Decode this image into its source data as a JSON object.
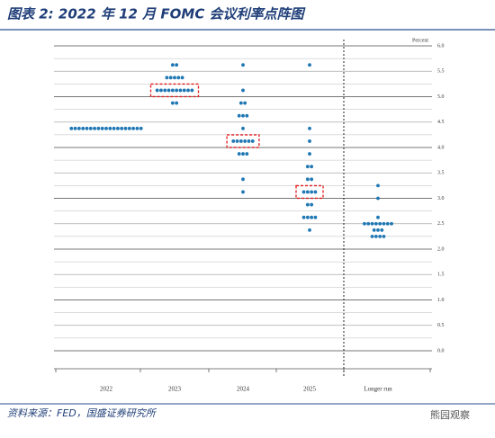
{
  "chart_data": {
    "type": "dot",
    "title": "图表 2:  2022 年 12 月 FOMC 会议利率点阵图",
    "y_label": "Percent",
    "categories": [
      "2022",
      "2023",
      "2024",
      "2025",
      "Longer run"
    ],
    "dots": [
      [
        {
          "value": 4.375,
          "count": 19
        }
      ],
      [
        {
          "value": 5.625,
          "count": 2
        },
        {
          "value": 5.375,
          "count": 5
        },
        {
          "value": 5.125,
          "count": 10
        },
        {
          "value": 4.875,
          "count": 2
        }
      ],
      [
        {
          "value": 5.625,
          "count": 1
        },
        {
          "value": 5.125,
          "count": 1
        },
        {
          "value": 4.875,
          "count": 2
        },
        {
          "value": 4.625,
          "count": 3
        },
        {
          "value": 4.375,
          "count": 1
        },
        {
          "value": 4.125,
          "count": 6
        },
        {
          "value": 3.875,
          "count": 3
        },
        {
          "value": 3.375,
          "count": 1
        },
        {
          "value": 3.125,
          "count": 1
        }
      ],
      [
        {
          "value": 5.625,
          "count": 1
        },
        {
          "value": 4.375,
          "count": 1
        },
        {
          "value": 4.125,
          "count": 1
        },
        {
          "value": 3.875,
          "count": 1
        },
        {
          "value": 3.625,
          "count": 2
        },
        {
          "value": 3.375,
          "count": 2
        },
        {
          "value": 3.125,
          "count": 4
        },
        {
          "value": 2.875,
          "count": 2
        },
        {
          "value": 2.625,
          "count": 4
        },
        {
          "value": 2.375,
          "count": 1
        }
      ],
      [
        {
          "value": 3.25,
          "count": 1
        },
        {
          "value": 3.0,
          "count": 1
        },
        {
          "value": 2.625,
          "count": 1
        },
        {
          "value": 2.5,
          "count": 8
        },
        {
          "value": 2.375,
          "count": 3
        },
        {
          "value": 2.25,
          "count": 4
        }
      ]
    ],
    "medians": [
      null,
      5.125,
      4.125,
      3.125,
      null
    ],
    "color": "#1f77b4",
    "median_box_color": "#e0191b",
    "ylim": [
      0,
      6
    ],
    "yticks": [
      {
        "value": 0,
        "label": "0.0"
      },
      {
        "value": 0.5,
        "label": "0.5"
      },
      {
        "value": 1,
        "label": "1.0"
      },
      {
        "value": 1.5,
        "label": "1.5"
      },
      {
        "value": 2,
        "label": "2.0"
      },
      {
        "value": 2.5,
        "label": "2.5"
      },
      {
        "value": 3,
        "label": "3.0"
      },
      {
        "value": 3.5,
        "label": "3.5"
      },
      {
        "value": 4,
        "label": "4.0"
      },
      {
        "value": 4.5,
        "label": "4.5"
      },
      {
        "value": 5,
        "label": "5.0"
      },
      {
        "value": 5.5,
        "label": "5.5"
      },
      {
        "value": 6,
        "label": "6.0"
      }
    ],
    "minor_yticks": [
      0.25,
      0.75,
      1.25,
      1.75,
      2.25,
      2.75,
      3.25,
      3.75,
      4.25,
      4.75,
      5.25,
      5.75
    ],
    "source": "资料来源：FED，国盛证券研究所",
    "watermark": "熊园观察"
  }
}
